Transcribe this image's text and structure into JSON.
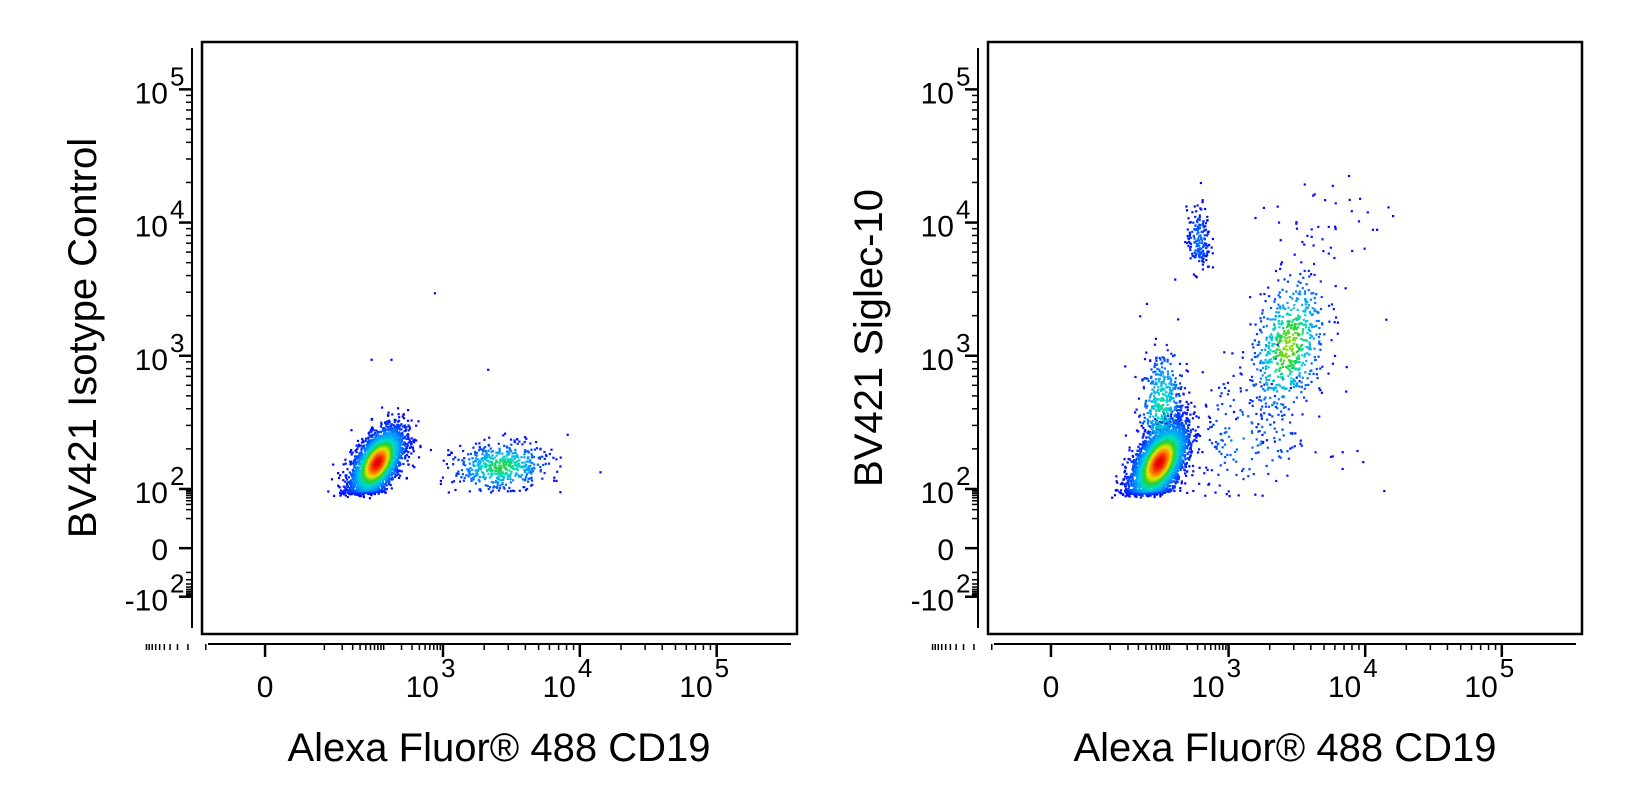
{
  "chart_data": [
    {
      "type": "scatter",
      "xlabel": "Alexa Fluor® 488  CD19",
      "ylabel": "BV421  Isotype Control",
      "x_scale": "biexponential",
      "y_scale": "biexponential",
      "x_ticks": [
        {
          "value": 0,
          "base": "0",
          "exp": ""
        },
        {
          "value": 1000,
          "base": "10",
          "exp": "3"
        },
        {
          "value": 10000,
          "base": "10",
          "exp": "4"
        },
        {
          "value": 100000,
          "base": "10",
          "exp": "5"
        }
      ],
      "y_ticks": [
        {
          "value": -100,
          "base": "-10",
          "exp": "2"
        },
        {
          "value": 0,
          "base": "0",
          "exp": ""
        },
        {
          "value": 100,
          "base": "10",
          "exp": "2"
        },
        {
          "value": 1000,
          "base": "10",
          "exp": "3"
        },
        {
          "value": 10000,
          "base": "10",
          "exp": "4"
        },
        {
          "value": 100000,
          "base": "10",
          "exp": "5"
        }
      ],
      "populations": [
        {
          "center": [
            75,
            160
          ],
          "spread": [
            0.22,
            0.13
          ],
          "count": 3200,
          "correlation": 0.55
        },
        {
          "center": [
            2600,
            150
          ],
          "spread": [
            0.17,
            0.09
          ],
          "count": 520,
          "correlation": 0.1
        }
      ],
      "outliers": [
        [
          700,
          3000
        ],
        [
          2100,
          800
        ],
        [
          60,
          950
        ],
        [
          130,
          950
        ],
        [
          8000,
          260
        ],
        [
          400,
          210
        ],
        [
          600,
          200
        ]
      ]
    },
    {
      "type": "scatter",
      "xlabel": "Alexa Fluor® 488  CD19",
      "ylabel": "BV421  Siglec-10",
      "x_scale": "biexponential",
      "y_scale": "biexponential",
      "x_ticks": [
        {
          "value": 0,
          "base": "0",
          "exp": ""
        },
        {
          "value": 1000,
          "base": "10",
          "exp": "3"
        },
        {
          "value": 10000,
          "base": "10",
          "exp": "4"
        },
        {
          "value": 100000,
          "base": "10",
          "exp": "5"
        }
      ],
      "y_ticks": [
        {
          "value": -100,
          "base": "-10",
          "exp": "2"
        },
        {
          "value": 0,
          "base": "0",
          "exp": ""
        },
        {
          "value": 100,
          "base": "10",
          "exp": "2"
        },
        {
          "value": 1000,
          "base": "10",
          "exp": "3"
        },
        {
          "value": 10000,
          "base": "10",
          "exp": "4"
        },
        {
          "value": 100000,
          "base": "10",
          "exp": "5"
        }
      ],
      "populations": [
        {
          "center": [
            65,
            160
          ],
          "spread": [
            0.24,
            0.15
          ],
          "count": 3300,
          "correlation": 0.55
        },
        {
          "center": [
            70,
            420
          ],
          "spread": [
            0.18,
            0.22
          ],
          "count": 450,
          "correlation": 0.2
        },
        {
          "center": [
            300,
            7500
          ],
          "spread": [
            0.1,
            0.12
          ],
          "count": 170,
          "correlation": 0.0
        },
        {
          "center": [
            2700,
            1200
          ],
          "spread": [
            0.14,
            0.27
          ],
          "count": 620,
          "correlation": 0.35
        },
        {
          "center": [
            1200,
            250
          ],
          "spread": [
            0.33,
            0.25
          ],
          "count": 170,
          "correlation": 0.0
        },
        {
          "center": [
            5000,
            9000
          ],
          "spread": [
            0.22,
            0.2
          ],
          "count": 40,
          "correlation": 0.0
        }
      ],
      "outliers": [
        [
          40,
          2500
        ],
        [
          120,
          3800
        ],
        [
          350,
          15000
        ],
        [
          5000,
          15000
        ],
        [
          12000,
          9000
        ],
        [
          14000,
          1900
        ],
        [
          -40,
          -30
        ]
      ]
    }
  ]
}
